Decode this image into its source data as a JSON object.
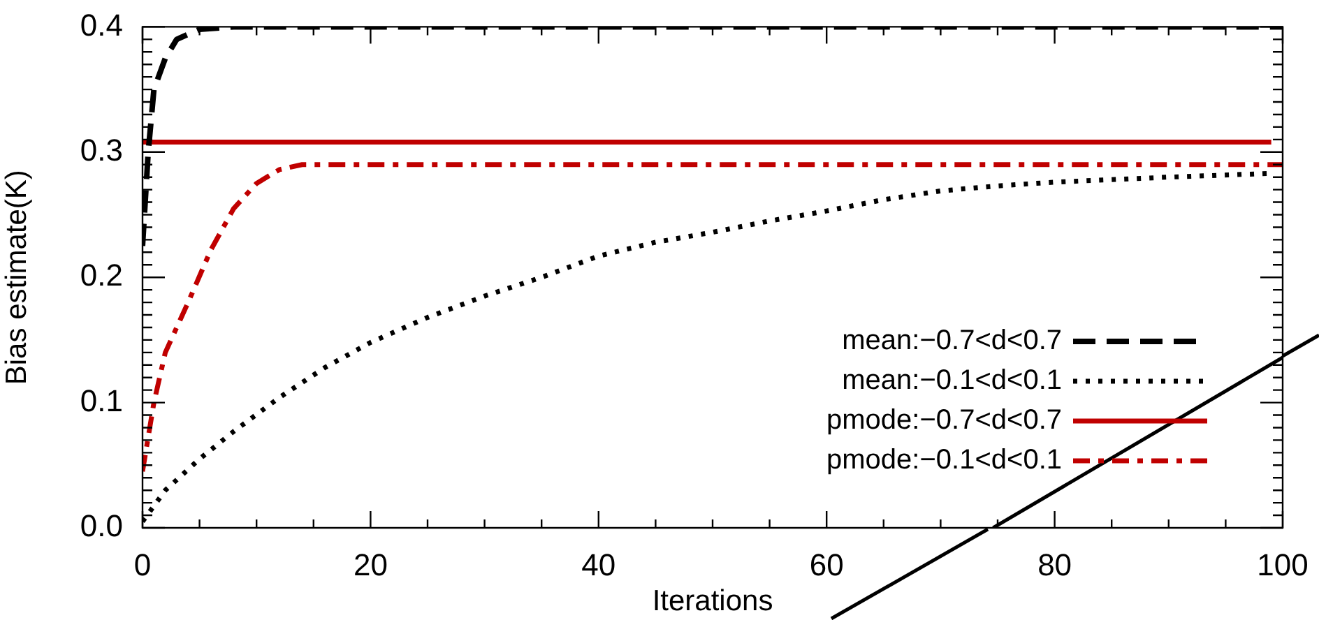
{
  "chart_data": {
    "type": "line",
    "xlabel": "Iterations",
    "ylabel": "Bias estimate(K)",
    "xlim": [
      0,
      100
    ],
    "ylim": [
      0,
      0.4
    ],
    "xticks": [
      0,
      {
        "value": 5,
        "label": null
      },
      {
        "value": 10,
        "label": null
      },
      {
        "value": 15,
        "label": null
      },
      20,
      {
        "value": 25,
        "label": null
      },
      {
        "value": 30,
        "label": null
      },
      {
        "value": 35,
        "label": null
      },
      40,
      {
        "value": 45,
        "label": null
      },
      {
        "value": 50,
        "label": null
      },
      {
        "value": 55,
        "label": null
      },
      60,
      {
        "value": 65,
        "label": null
      },
      {
        "value": 70,
        "label": null
      },
      {
        "value": 75,
        "label": null
      },
      80,
      {
        "value": 85,
        "label": null
      },
      {
        "value": 90,
        "label": null
      },
      {
        "value": 95,
        "label": null
      },
      100
    ],
    "yticks": [
      {
        "value": 0,
        "label": "0.0"
      },
      {
        "value": 0.01,
        "label": null
      },
      {
        "value": 0.02,
        "label": null
      },
      {
        "value": 0.03,
        "label": null
      },
      {
        "value": 0.04,
        "label": null
      },
      {
        "value": 0.05,
        "label": null
      },
      {
        "value": 0.06,
        "label": null
      },
      {
        "value": 0.07,
        "label": null
      },
      {
        "value": 0.08,
        "label": null
      },
      {
        "value": 0.09,
        "label": null
      },
      0.1,
      {
        "value": 0.11,
        "label": null
      },
      {
        "value": 0.12,
        "label": null
      },
      {
        "value": 0.13,
        "label": null
      },
      {
        "value": 0.14,
        "label": null
      },
      {
        "value": 0.15,
        "label": null
      },
      {
        "value": 0.16,
        "label": null
      },
      {
        "value": 0.17,
        "label": null
      },
      {
        "value": 0.18,
        "label": null
      },
      {
        "value": 0.19,
        "label": null
      },
      0.2,
      {
        "value": 0.21,
        "label": null
      },
      {
        "value": 0.22,
        "label": null
      },
      {
        "value": 0.23,
        "label": null
      },
      {
        "value": 0.24,
        "label": null
      },
      {
        "value": 0.25,
        "label": null
      },
      {
        "value": 0.26,
        "label": null
      },
      {
        "value": 0.27,
        "label": null
      },
      {
        "value": 0.28,
        "label": null
      },
      {
        "value": 0.29,
        "label": null
      },
      0.3,
      {
        "value": 0.31,
        "label": null
      },
      {
        "value": 0.32,
        "label": null
      },
      {
        "value": 0.33,
        "label": null
      },
      {
        "value": 0.34,
        "label": null
      },
      {
        "value": 0.35,
        "label": null
      },
      {
        "value": 0.36,
        "label": null
      },
      {
        "value": 0.37,
        "label": null
      },
      {
        "value": 0.38,
        "label": null
      },
      {
        "value": 0.39,
        "label": null
      },
      0.4
    ],
    "grid": false,
    "legend": "bottom right",
    "marker": "none",
    "series": [
      {
        "name": "mean:−0.7<d<0.7",
        "color": "#000000",
        "line_style": "dashed",
        "x": [
          0,
          0.5,
          1,
          2,
          3,
          5,
          8,
          100
        ],
        "values": [
          0.225,
          0.3,
          0.35,
          0.375,
          0.39,
          0.398,
          0.4,
          0.4
        ]
      },
      {
        "name": "mean:−0.1<d<0.1",
        "color": "#000000",
        "line_style": "dotted",
        "x": [
          0,
          2,
          5,
          8,
          12,
          16,
          20,
          25,
          30,
          35,
          40,
          45,
          50,
          55,
          60,
          65,
          70,
          75,
          80,
          90,
          99
        ],
        "values": [
          0.005,
          0.03,
          0.055,
          0.077,
          0.104,
          0.128,
          0.148,
          0.168,
          0.185,
          0.2,
          0.217,
          0.228,
          0.236,
          0.245,
          0.253,
          0.262,
          0.269,
          0.273,
          0.276,
          0.28,
          0.283
        ]
      },
      {
        "name": "pmode:−0.7<d<0.7",
        "color": "#c00000",
        "line_style": "solid",
        "x": [
          0,
          99
        ],
        "values": [
          0.308,
          0.308
        ]
      },
      {
        "name": "pmode:−0.1<d<0.1",
        "color": "#c00000",
        "line_style": "dashdot",
        "x": [
          0,
          1,
          2,
          4,
          6,
          8,
          10,
          12,
          14,
          100
        ],
        "values": [
          0.045,
          0.1,
          0.14,
          0.18,
          0.222,
          0.255,
          0.275,
          0.286,
          0.29,
          0.29
        ]
      },
      {
        "color": "#000000",
        "line_style": "solid",
        "x": [
          74.6,
          100
        ],
        "values": [
          0,
          0.136
        ]
      }
    ]
  }
}
